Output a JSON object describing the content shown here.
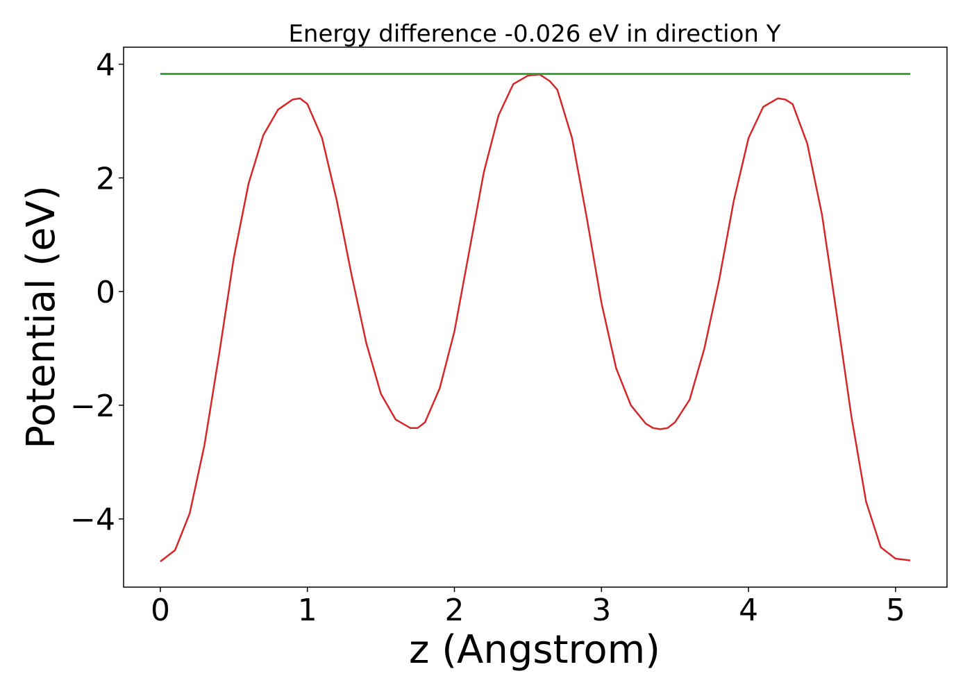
{
  "chart_data": {
    "type": "line",
    "title": "Energy difference -0.026 eV in direction Y",
    "xlabel": "z (Angstrom)",
    "ylabel": "Potential (eV)",
    "xlim": [
      -0.25,
      5.35
    ],
    "ylim": [
      -5.2,
      4.3
    ],
    "x_ticks": [
      0,
      1,
      2,
      3,
      4,
      5
    ],
    "x_tick_labels": [
      "0",
      "1",
      "2",
      "3",
      "4",
      "5"
    ],
    "y_ticks": [
      -4,
      -2,
      0,
      2,
      4
    ],
    "y_tick_labels": [
      "−4",
      "−2",
      "0",
      "2",
      "4"
    ],
    "grid": false,
    "series": [
      {
        "color": "#d62728",
        "x": [
          0.0,
          0.1,
          0.2,
          0.3,
          0.4,
          0.5,
          0.6,
          0.7,
          0.8,
          0.9,
          0.95,
          1.0,
          1.1,
          1.2,
          1.3,
          1.4,
          1.5,
          1.6,
          1.7,
          1.75,
          1.8,
          1.9,
          2.0,
          2.1,
          2.2,
          2.3,
          2.4,
          2.5,
          2.58,
          2.65,
          2.7,
          2.8,
          2.9,
          3.0,
          3.1,
          3.2,
          3.3,
          3.35,
          3.4,
          3.45,
          3.5,
          3.6,
          3.7,
          3.8,
          3.9,
          4.0,
          4.1,
          4.2,
          4.25,
          4.3,
          4.4,
          4.5,
          4.6,
          4.7,
          4.8,
          4.9,
          5.0,
          5.1
        ],
        "y": [
          -4.75,
          -4.55,
          -3.9,
          -2.7,
          -1.1,
          0.6,
          1.9,
          2.75,
          3.2,
          3.38,
          3.4,
          3.3,
          2.7,
          1.6,
          0.3,
          -0.9,
          -1.8,
          -2.25,
          -2.4,
          -2.4,
          -2.3,
          -1.7,
          -0.7,
          0.7,
          2.1,
          3.1,
          3.65,
          3.8,
          3.82,
          3.7,
          3.55,
          2.7,
          1.3,
          -0.2,
          -1.35,
          -2.0,
          -2.32,
          -2.4,
          -2.42,
          -2.4,
          -2.3,
          -1.9,
          -1.0,
          0.2,
          1.6,
          2.7,
          3.25,
          3.4,
          3.38,
          3.3,
          2.6,
          1.35,
          -0.4,
          -2.2,
          -3.7,
          -4.5,
          -4.7,
          -4.73
        ]
      },
      {
        "color": "#1f77b4",
        "x": [
          0.0,
          5.1
        ],
        "y": [
          3.83,
          3.83
        ]
      },
      {
        "color": "#2ca02c",
        "x": [
          0.0,
          5.1
        ],
        "y": [
          3.83,
          3.83
        ]
      }
    ]
  }
}
